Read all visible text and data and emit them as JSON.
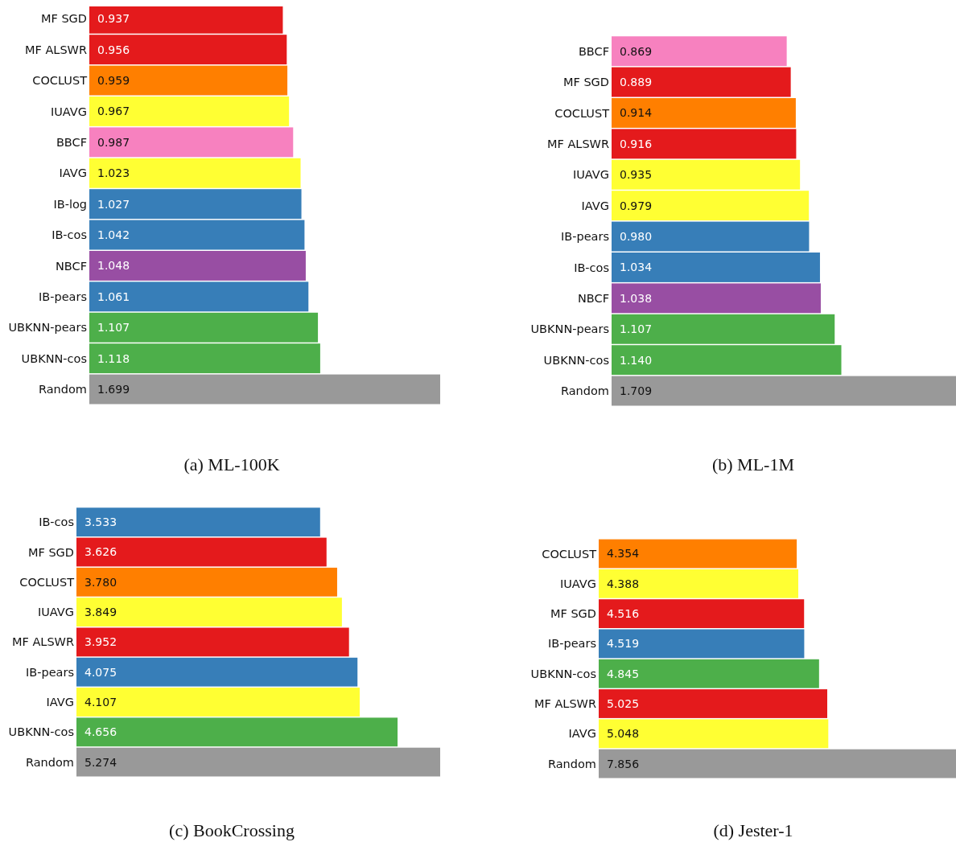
{
  "chart_data": [
    {
      "type": "bar",
      "orientation": "horizontal",
      "title": "(a) ML-100K",
      "categories": [
        "MF SGD",
        "MF ALSWR",
        "COCLUST",
        "IUAVG",
        "BBCF",
        "IAVG",
        "IB-log",
        "IB-cos",
        "NBCF",
        "IB-pears",
        "UBKNN-pears",
        "UBKNN-cos",
        "Random"
      ],
      "values": [
        0.937,
        0.956,
        0.959,
        0.967,
        0.987,
        1.023,
        1.027,
        1.042,
        1.048,
        1.061,
        1.107,
        1.118,
        1.699
      ],
      "value_labels": [
        "0.937",
        "0.956",
        "0.959",
        "0.967",
        "0.987",
        "1.023",
        "1.027",
        "1.042",
        "1.048",
        "1.061",
        "1.107",
        "1.118",
        "1.699"
      ],
      "colors": [
        "#e41a1c",
        "#e41a1c",
        "#ff7f00",
        "#ffff33",
        "#f781bf",
        "#ffff33",
        "#377eb8",
        "#377eb8",
        "#984ea3",
        "#377eb8",
        "#4daf4a",
        "#4daf4a",
        "#999999"
      ]
    },
    {
      "type": "bar",
      "orientation": "horizontal",
      "title": "(b) ML-1M",
      "categories": [
        "BBCF",
        "MF SGD",
        "COCLUST",
        "MF ALSWR",
        "IUAVG",
        "IAVG",
        "IB-pears",
        "IB-cos",
        "NBCF",
        "UBKNN-pears",
        "UBKNN-cos",
        "Random"
      ],
      "values": [
        0.869,
        0.889,
        0.914,
        0.916,
        0.935,
        0.979,
        0.98,
        1.034,
        1.038,
        1.107,
        1.14,
        1.709
      ],
      "value_labels": [
        "0.869",
        "0.889",
        "0.914",
        "0.916",
        "0.935",
        "0.979",
        "0.980",
        "1.034",
        "1.038",
        "1.107",
        "1.140",
        "1.709"
      ],
      "colors": [
        "#f781bf",
        "#e41a1c",
        "#ff7f00",
        "#e41a1c",
        "#ffff33",
        "#ffff33",
        "#377eb8",
        "#377eb8",
        "#984ea3",
        "#4daf4a",
        "#4daf4a",
        "#999999"
      ]
    },
    {
      "type": "bar",
      "orientation": "horizontal",
      "title": "(c) BookCrossing",
      "categories": [
        "IB-cos",
        "MF SGD",
        "COCLUST",
        "IUAVG",
        "MF ALSWR",
        "IB-pears",
        "IAVG",
        "UBKNN-cos",
        "Random"
      ],
      "values": [
        3.533,
        3.626,
        3.78,
        3.849,
        3.952,
        4.075,
        4.107,
        4.656,
        5.274
      ],
      "value_labels": [
        "3.533",
        "3.626",
        "3.780",
        "3.849",
        "3.952",
        "4.075",
        "4.107",
        "4.656",
        "5.274"
      ],
      "colors": [
        "#377eb8",
        "#e41a1c",
        "#ff7f00",
        "#ffff33",
        "#e41a1c",
        "#377eb8",
        "#ffff33",
        "#4daf4a",
        "#999999"
      ]
    },
    {
      "type": "bar",
      "orientation": "horizontal",
      "title": "(d) Jester-1",
      "categories": [
        "COCLUST",
        "IUAVG",
        "MF SGD",
        "IB-pears",
        "UBKNN-cos",
        "MF ALSWR",
        "IAVG",
        "Random"
      ],
      "values": [
        4.354,
        4.388,
        4.516,
        4.519,
        4.845,
        5.025,
        5.048,
        7.856
      ],
      "value_labels": [
        "4.354",
        "4.388",
        "4.516",
        "4.519",
        "4.845",
        "5.025",
        "5.048",
        "7.856"
      ],
      "colors": [
        "#ff7f00",
        "#ffff33",
        "#e41a1c",
        "#377eb8",
        "#4daf4a",
        "#e41a1c",
        "#ffff33",
        "#999999"
      ]
    }
  ]
}
